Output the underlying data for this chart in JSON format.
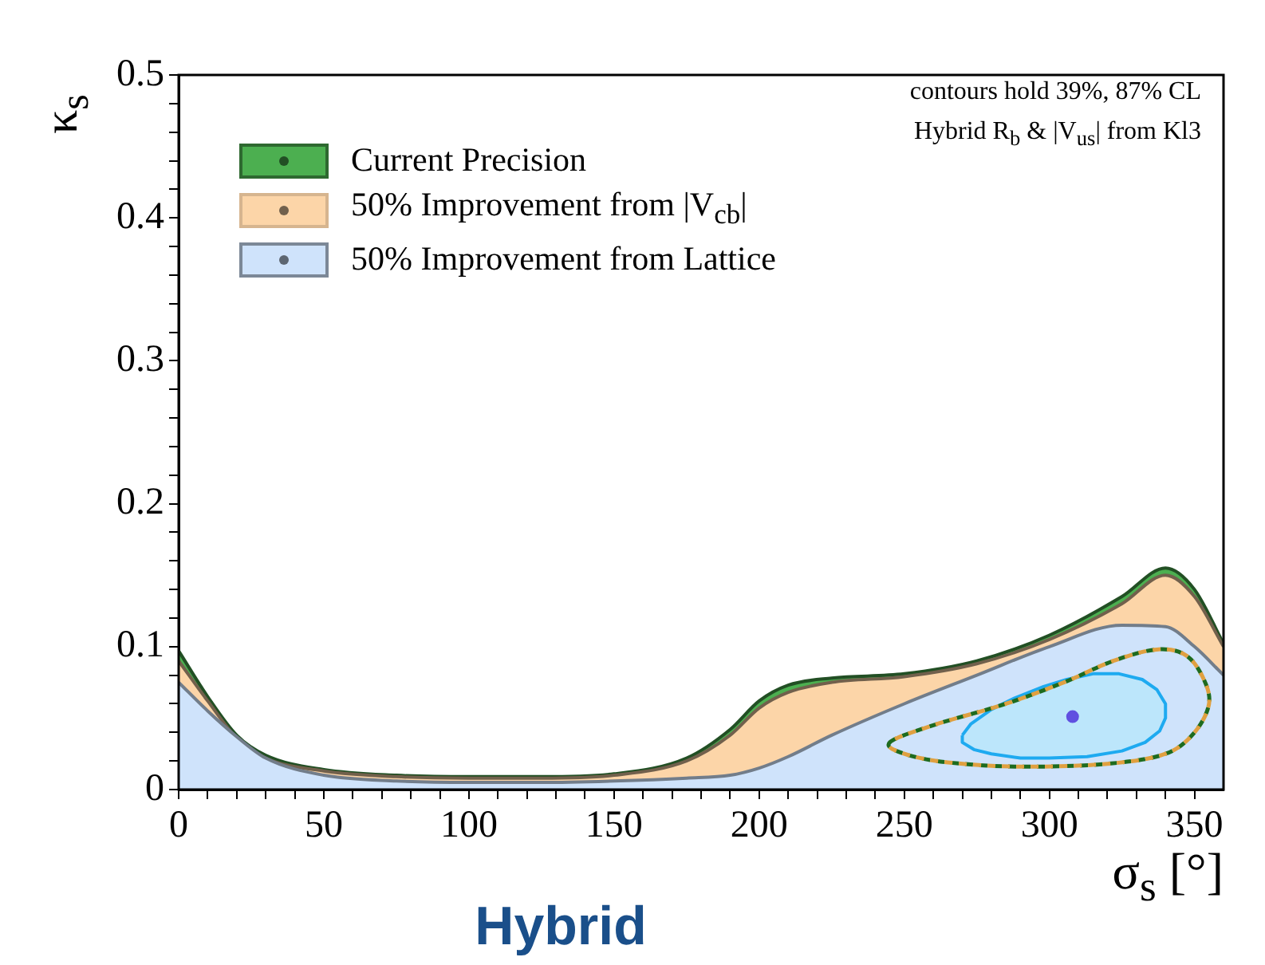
{
  "chart_data": {
    "type": "area",
    "xlabel": "σ$_{s}$ [°]",
    "ylabel": "κ$_{s}$",
    "annotations": [
      "contours hold 39%, 87% CL",
      "Hybrid R$_{b}$ & |V$_{us}$| from Kl3",
      "Hybrid"
    ],
    "xlim": [
      0,
      360
    ],
    "ylim": [
      0,
      0.5
    ],
    "xticks": [
      0,
      {
        "value": 10,
        "label": null
      },
      {
        "value": 20,
        "label": null
      },
      {
        "value": 30,
        "label": null
      },
      {
        "value": 40,
        "label": null
      },
      50,
      {
        "value": 60,
        "label": null
      },
      {
        "value": 70,
        "label": null
      },
      {
        "value": 80,
        "label": null
      },
      {
        "value": 90,
        "label": null
      },
      100,
      {
        "value": 110,
        "label": null
      },
      {
        "value": 120,
        "label": null
      },
      {
        "value": 130,
        "label": null
      },
      {
        "value": 140,
        "label": null
      },
      150,
      {
        "value": 160,
        "label": null
      },
      {
        "value": 170,
        "label": null
      },
      {
        "value": 180,
        "label": null
      },
      {
        "value": 190,
        "label": null
      },
      200,
      {
        "value": 210,
        "label": null
      },
      {
        "value": 220,
        "label": null
      },
      {
        "value": 230,
        "label": null
      },
      {
        "value": 240,
        "label": null
      },
      250,
      {
        "value": 260,
        "label": null
      },
      {
        "value": 270,
        "label": null
      },
      {
        "value": 280,
        "label": null
      },
      {
        "value": 290,
        "label": null
      },
      300,
      {
        "value": 310,
        "label": null
      },
      {
        "value": 320,
        "label": null
      },
      {
        "value": 330,
        "label": null
      },
      {
        "value": 340,
        "label": null
      },
      350
    ],
    "yticks": [
      0,
      {
        "value": 0.02,
        "label": null
      },
      {
        "value": 0.04,
        "label": null
      },
      {
        "value": 0.06,
        "label": null
      },
      {
        "value": 0.08,
        "label": null
      },
      0.1,
      {
        "value": 0.12,
        "label": null
      },
      {
        "value": 0.14,
        "label": null
      },
      {
        "value": 0.16,
        "label": null
      },
      {
        "value": 0.18,
        "label": null
      },
      0.2,
      {
        "value": 0.22,
        "label": null
      },
      {
        "value": 0.24,
        "label": null
      },
      {
        "value": 0.26,
        "label": null
      },
      {
        "value": 0.28,
        "label": null
      },
      0.3,
      {
        "value": 0.32,
        "label": null
      },
      {
        "value": 0.34,
        "label": null
      },
      {
        "value": 0.36,
        "label": null
      },
      {
        "value": 0.38,
        "label": null
      },
      0.4,
      {
        "value": 0.42,
        "label": null
      },
      {
        "value": 0.44,
        "label": null
      },
      {
        "value": 0.46,
        "label": null
      },
      {
        "value": 0.48,
        "label": null
      },
      0.5
    ],
    "grid": false,
    "legend": "top left",
    "series": [
      {
        "name": "Current Precision",
        "color": "#4caf50",
        "x": [
          0,
          10,
          20,
          30,
          50,
          75,
          100,
          125,
          150,
          175,
          190,
          200,
          210,
          225,
          250,
          275,
          300,
          325,
          340,
          350,
          360
        ],
        "values": [
          0.097,
          0.065,
          0.038,
          0.024,
          0.014,
          0.01,
          0.009,
          0.009,
          0.011,
          0.022,
          0.042,
          0.062,
          0.073,
          0.078,
          0.081,
          0.09,
          0.108,
          0.135,
          0.155,
          0.14,
          0.102
        ]
      },
      {
        "name": "50% Improvement from |V$_{cb}$|",
        "color": "#fcd5a8",
        "x": [
          0,
          10,
          20,
          30,
          50,
          75,
          100,
          125,
          150,
          175,
          190,
          200,
          210,
          225,
          250,
          275,
          300,
          325,
          340,
          350,
          360
        ],
        "values": [
          0.09,
          0.062,
          0.036,
          0.022,
          0.013,
          0.009,
          0.008,
          0.008,
          0.01,
          0.02,
          0.038,
          0.057,
          0.068,
          0.075,
          0.079,
          0.088,
          0.105,
          0.13,
          0.15,
          0.135,
          0.1
        ]
      },
      {
        "name": "50% Improvement from Lattice",
        "color": "#cfe3fb",
        "x": [
          0,
          10,
          20,
          30,
          50,
          75,
          100,
          125,
          150,
          175,
          190,
          200,
          210,
          225,
          250,
          275,
          300,
          325,
          340,
          350,
          360
        ],
        "values": [
          0.075,
          0.055,
          0.037,
          0.022,
          0.01,
          0.006,
          0.005,
          0.005,
          0.006,
          0.008,
          0.01,
          0.015,
          0.023,
          0.038,
          0.06,
          0.08,
          0.1,
          0.115,
          0.114,
          0.1,
          0.08
        ]
      },
      {
        "type": "area",
        "color": "#1eaaf0",
        "x": [
          270,
          273,
          280,
          288,
          298,
          306,
          315,
          324,
          332,
          337,
          340,
          340,
          338,
          333,
          325,
          313,
          300,
          290,
          280,
          274,
          270,
          270
        ],
        "values": [
          0.038,
          0.046,
          0.056,
          0.064,
          0.072,
          0.077,
          0.081,
          0.081,
          0.077,
          0.07,
          0.06,
          0.05,
          0.041,
          0.033,
          0.027,
          0.023,
          0.022,
          0.022,
          0.025,
          0.028,
          0.033,
          0.038
        ]
      },
      {
        "type": "scatter",
        "marker": "circle",
        "color": "#6050e0",
        "x": [
          308
        ],
        "values": [
          0.051
        ]
      }
    ]
  }
}
